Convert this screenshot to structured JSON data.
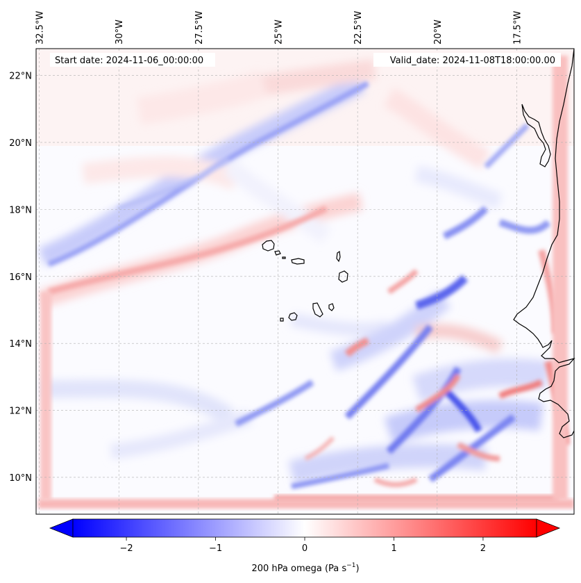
{
  "map": {
    "start_label": "Start date: 2024-11-06_00:00:00",
    "valid_label": "Valid_date: 2024-11-08T18:00:00.00",
    "lon_ticks": [
      {
        "label": "32.5°W",
        "lon": -32.5
      },
      {
        "label": "30°W",
        "lon": -30.0
      },
      {
        "label": "27.5°W",
        "lon": -27.5
      },
      {
        "label": "25°W",
        "lon": -25.0
      },
      {
        "label": "22.5°W",
        "lon": -22.5
      },
      {
        "label": "20°W",
        "lon": -20.0
      },
      {
        "label": "17.5°W",
        "lon": -17.5
      }
    ],
    "lat_ticks": [
      {
        "label": "22°N",
        "lat": 22
      },
      {
        "label": "20°N",
        "lat": 20
      },
      {
        "label": "18°N",
        "lat": 18
      },
      {
        "label": "16°N",
        "lat": 16
      },
      {
        "label": "14°N",
        "lat": 14
      },
      {
        "label": "12°N",
        "lat": 12
      },
      {
        "label": "10°N",
        "lat": 10
      }
    ],
    "extent": {
      "lon_min": -32.6,
      "lon_max": -15.7,
      "lat_min": 8.9,
      "lat_max": 22.8
    }
  },
  "colorbar": {
    "label_text": "200 hPa omega (Pa s",
    "label_exp": "−1",
    "label_close": ")",
    "vmin": -2.6,
    "vmax": 2.6,
    "colormap": "bwr",
    "extend": "both",
    "ticks": [
      {
        "label": "−2",
        "value": -2
      },
      {
        "label": "−1",
        "value": -1
      },
      {
        "label": "0",
        "value": 0
      },
      {
        "label": "1",
        "value": 1
      },
      {
        "label": "2",
        "value": 2
      }
    ]
  }
}
